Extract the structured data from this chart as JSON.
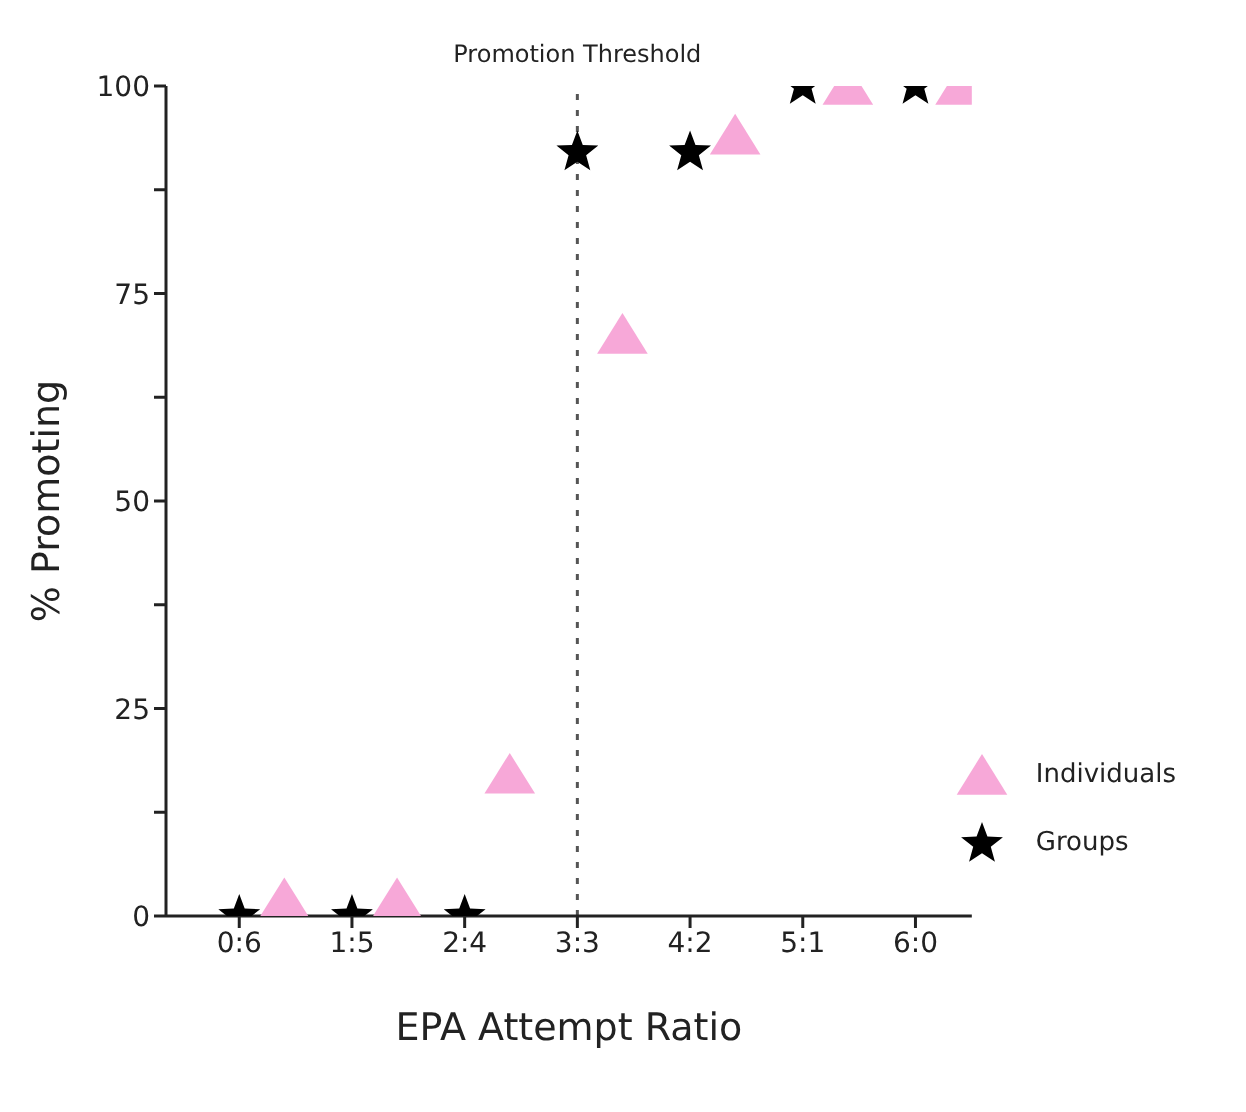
{
  "chart_data": {
    "type": "scatter",
    "xlabel": "EPA Attempt Ratio",
    "ylabel": "% Promoting",
    "categories": [
      "0:6",
      "1:5",
      "2:4",
      "3:3",
      "4:2",
      "5:1",
      "6:0"
    ],
    "ylim": [
      0,
      100
    ],
    "yticks": [
      0,
      {
        "value": 12.5,
        "label": null
      },
      25,
      {
        "value": 37.5,
        "label": null
      },
      50,
      {
        "value": 62.5,
        "label": null
      },
      75,
      {
        "value": 87.5,
        "label": null
      },
      100
    ],
    "grid": false,
    "legend": "bottom right",
    "ref_lines": [
      {
        "axis": "x",
        "value": "3:3",
        "label": "Promotion Threshold",
        "color": "#555555",
        "line_style": "dotted"
      }
    ],
    "series": [
      {
        "name": "Individuals",
        "color": "#f7a8d8",
        "marker": "triangle",
        "x": [
          "0:6",
          "1:5",
          "2:4",
          "3:3",
          "4:2",
          "5:1",
          "6:0"
        ],
        "values": [
          2,
          2,
          17,
          70,
          94,
          100,
          100
        ]
      },
      {
        "name": "Groups",
        "color": "#000000",
        "marker": "star",
        "x": [
          "0:6",
          "1:5",
          "2:4",
          "3:3",
          "4:2",
          "5:1",
          "6:0"
        ],
        "values": [
          0,
          0,
          0,
          92,
          92,
          100,
          100
        ]
      }
    ]
  }
}
